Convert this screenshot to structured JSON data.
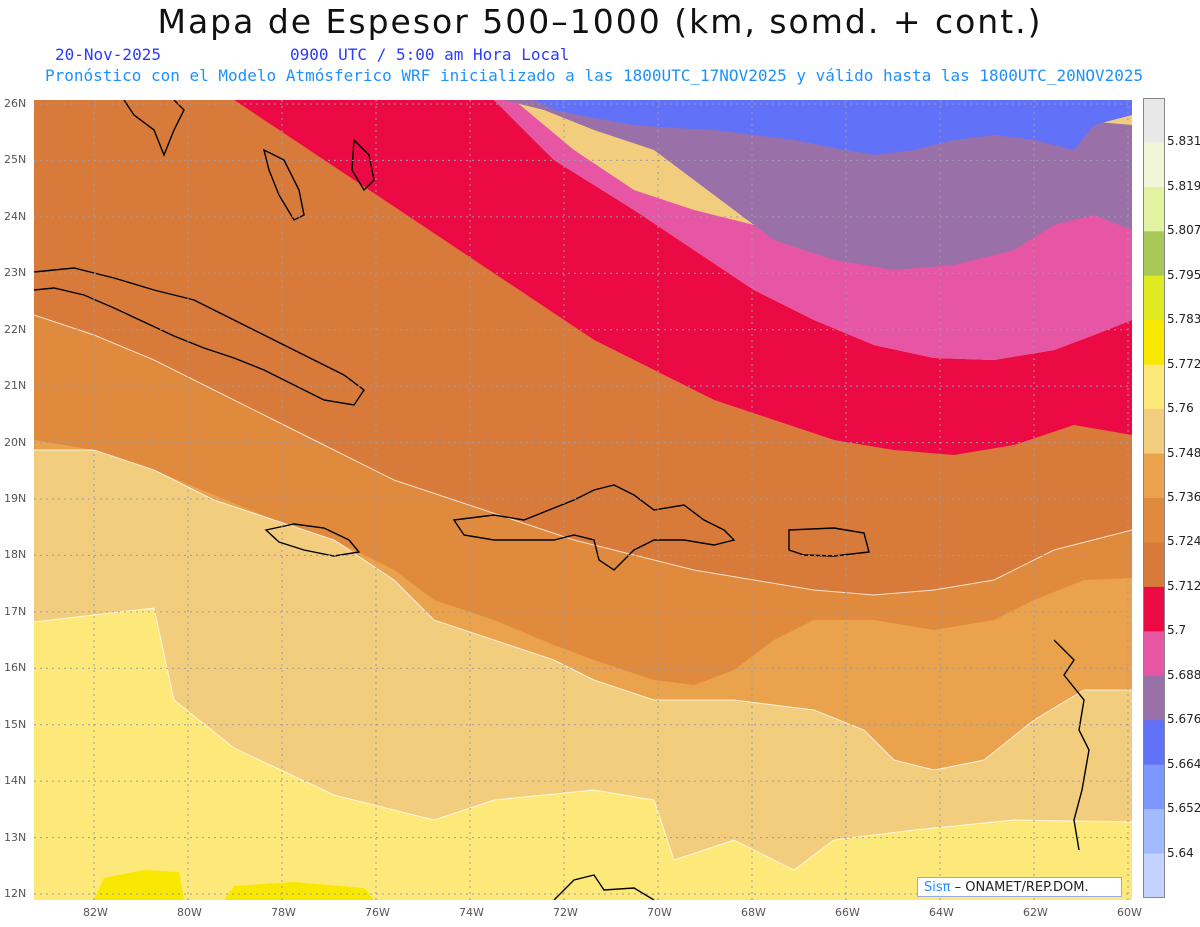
{
  "title": "Mapa de Espesor 500–1000 (km, somd. + cont.)",
  "date": "20-Nov-2025",
  "valid_time": "0900 UTC / 5:00 am Hora Local",
  "forecast_note": "Pronóstico con el Modelo Atmósferico WRF inicializado a las 1800UTC_17NOV2025 y válido hasta las  1800UTC_20NOV2025",
  "credit": {
    "brand": "Sisπ",
    "text": " – ONAMET/REP.DOM."
  },
  "lat_labels": [
    "26N",
    "25N",
    "24N",
    "23N",
    "22N",
    "21N",
    "20N",
    "19N",
    "18N",
    "17N",
    "16N",
    "15N",
    "14N",
    "13N",
    "12N"
  ],
  "lon_labels": [
    "82W",
    "80W",
    "78W",
    "76W",
    "74W",
    "72W",
    "70W",
    "68W",
    "66W",
    "64W",
    "62W",
    "60W"
  ],
  "colorbar": {
    "labels": [
      "5.831",
      "5.819",
      "5.807",
      "5.795",
      "5.783",
      "5.772",
      "5.76",
      "5.748",
      "5.736",
      "5.724",
      "5.712",
      "5.7",
      "5.688",
      "5.676",
      "5.664",
      "5.652",
      "5.64"
    ],
    "colors": [
      "#e8e8e8",
      "#f2f6d8",
      "#e2f2a0",
      "#a8c858",
      "#e0ea20",
      "#f8e800",
      "#fde97a",
      "#f2cd7e",
      "#eaa24c",
      "#e08a3e",
      "#d87a3a",
      "#ec0a44",
      "#e656a4",
      "#9a70a8",
      "#6272f8",
      "#7c98ff",
      "#a2baff",
      "#c4d2ff"
    ]
  },
  "map": {
    "band_colors": [
      "#fde97a",
      "#f2cd7e",
      "#eaa24c",
      "#e08a3e",
      "#d87a3a",
      "#ec0a44",
      "#e656a4",
      "#9a70a8",
      "#6272f8"
    ],
    "extra_colors": {
      "yellow_patch": "#f8e800",
      "coast": "#000000",
      "grid": "#9a9aaa"
    }
  }
}
